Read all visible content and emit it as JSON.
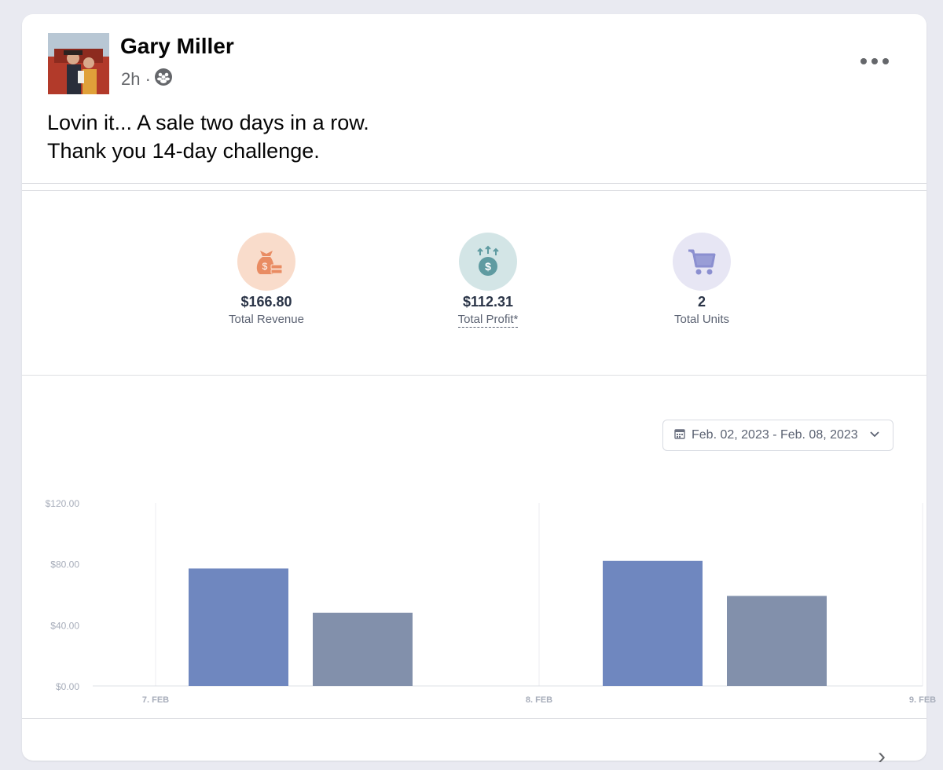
{
  "post": {
    "author": "Gary Miller",
    "time": "2h ·",
    "text_line1": "Lovin it... A sale two days in a row.",
    "text_line2": "Thank you 14-day challenge."
  },
  "stats": [
    {
      "value": "$166.80",
      "label": "Total Revenue",
      "icon": "money-bag-icon",
      "color": "#f9dccb"
    },
    {
      "value": "$112.31",
      "label": "Total Profit*",
      "icon": "profit-dollar-icon",
      "color": "#d3e5e6"
    },
    {
      "value": "2",
      "label": "Total Units",
      "icon": "shopping-cart-icon",
      "color": "#e7e6f4"
    }
  ],
  "date_range": "Feb. 02, 2023 - Feb. 08, 2023",
  "chart_data": {
    "type": "bar",
    "categories": [
      "7. FEB",
      "8. FEB"
    ],
    "x_ticks": [
      "7. FEB",
      "8. FEB",
      "9. FEB"
    ],
    "series": [
      {
        "values": [
          77,
          82
        ],
        "color": "#6f87bf"
      },
      {
        "values": [
          48,
          59
        ],
        "color": "#8290ab"
      }
    ],
    "y_ticks": [
      "$0.00",
      "$40.00",
      "$80.00",
      "$120.00"
    ],
    "ylim": [
      0,
      120
    ],
    "grid": "vertical"
  }
}
